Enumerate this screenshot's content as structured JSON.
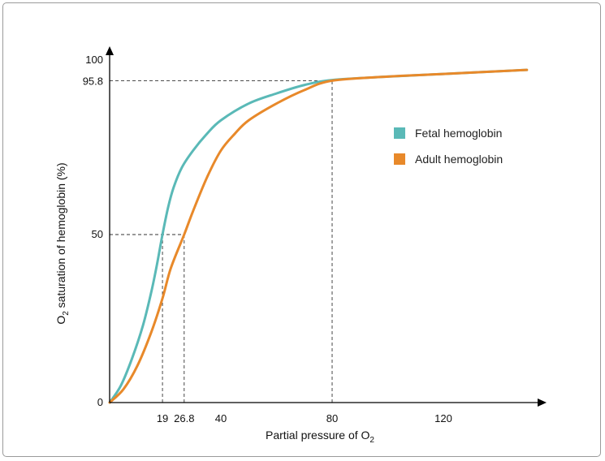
{
  "chart_data": {
    "type": "line",
    "xlabel_main": "Partial pressure of O",
    "xlabel_sub": "2",
    "ylabel_main": "O",
    "ylabel_sub": "2",
    "ylabel_rest": " saturation of hemoglobin (%)",
    "xlim": [
      0,
      150
    ],
    "ylim": [
      0,
      100
    ],
    "x_ticks": [
      19,
      26.8,
      40,
      80,
      120
    ],
    "x_tick_labels": [
      "19",
      "26.8",
      "40",
      "80",
      "120"
    ],
    "y_ticks": [
      0,
      50,
      95.8,
      100
    ],
    "y_tick_labels": [
      "0",
      "50",
      "95.8",
      "100"
    ],
    "legend_position": "right",
    "series": [
      {
        "name": "Fetal hemoglobin",
        "color": "#5ab9b7",
        "points": [
          [
            0,
            0
          ],
          [
            4,
            5
          ],
          [
            8,
            13
          ],
          [
            12,
            23
          ],
          [
            15,
            33
          ],
          [
            17,
            41
          ],
          [
            19,
            50
          ],
          [
            21,
            58
          ],
          [
            23,
            64
          ],
          [
            26,
            70
          ],
          [
            30,
            75
          ],
          [
            35,
            80
          ],
          [
            40,
            84
          ],
          [
            50,
            89
          ],
          [
            60,
            92
          ],
          [
            70,
            94.5
          ],
          [
            80,
            96
          ],
          [
            100,
            97
          ],
          [
            120,
            97.8
          ],
          [
            150,
            99
          ]
        ]
      },
      {
        "name": "Adult hemoglobin",
        "color": "#e8892a",
        "points": [
          [
            0,
            0
          ],
          [
            5,
            4
          ],
          [
            10,
            11
          ],
          [
            15,
            21
          ],
          [
            19,
            31
          ],
          [
            22,
            40
          ],
          [
            26.8,
            50
          ],
          [
            30,
            57
          ],
          [
            35,
            67
          ],
          [
            40,
            75
          ],
          [
            45,
            80
          ],
          [
            50,
            84
          ],
          [
            60,
            89
          ],
          [
            70,
            93
          ],
          [
            80,
            95.8
          ],
          [
            100,
            97
          ],
          [
            120,
            97.8
          ],
          [
            150,
            99
          ]
        ]
      }
    ],
    "guides": [
      {
        "x": 19,
        "y": 50
      },
      {
        "x": 26.8,
        "y": 50
      },
      {
        "x": 80,
        "y": 95.8
      }
    ]
  }
}
